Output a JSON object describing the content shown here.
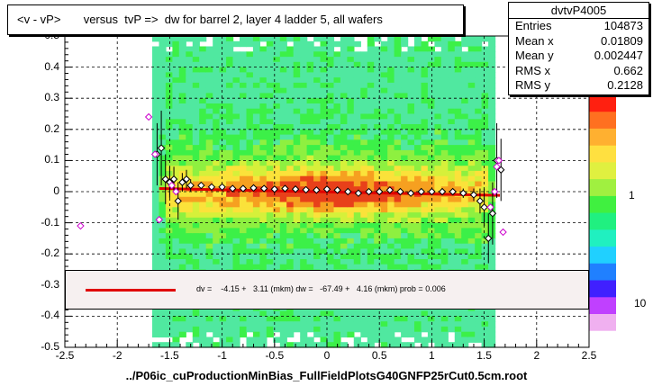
{
  "chart_data": {
    "type": "scatter",
    "title": "<v - vP>       versus  tvP =>  dw for barrel 2, layer 4 ladder 5, all wafers",
    "xlabel": "../P06ic_cuProductionMinBias_FullFieldPlotsG40GNFP25rCut0.5cm.root",
    "xlim": [
      -2.5,
      2.5
    ],
    "ylim": [
      -0.5,
      0.5
    ],
    "x_ticks": [
      "-2.5",
      "-2",
      "-1.5",
      "-1",
      "-0.5",
      "0",
      "0.5",
      "1",
      "1.5",
      "2",
      "2.5"
    ],
    "y_ticks": [
      "-0.5",
      "-0.4",
      "-0.3",
      "-0.2",
      "-0.1",
      "0",
      "0.1",
      "0.2",
      "0.3",
      "0.4",
      "0.5"
    ],
    "z_ticks": [
      "10",
      "1",
      "10"
    ],
    "grid": true,
    "profile_points": [
      {
        "x": -1.62,
        "y": 0.12,
        "err": 0.1
      },
      {
        "x": -1.58,
        "y": 0.14,
        "err": 0.12
      },
      {
        "x": -1.54,
        "y": 0.04,
        "err": 0.08
      },
      {
        "x": -1.5,
        "y": 0.03,
        "err": 0.05
      },
      {
        "x": -1.46,
        "y": 0.04,
        "err": 0.04
      },
      {
        "x": -1.42,
        "y": -0.03,
        "err": 0.06
      },
      {
        "x": -1.38,
        "y": 0.03,
        "err": 0.03
      },
      {
        "x": -1.34,
        "y": 0.04,
        "err": 0.03
      },
      {
        "x": -1.3,
        "y": 0.02,
        "err": 0.02
      },
      {
        "x": -1.2,
        "y": 0.02,
        "err": 0.01
      },
      {
        "x": -1.1,
        "y": 0.015,
        "err": 0.01
      },
      {
        "x": -1.0,
        "y": 0.015,
        "err": 0.01
      },
      {
        "x": -0.9,
        "y": 0.01,
        "err": 0.008
      },
      {
        "x": -0.8,
        "y": 0.01,
        "err": 0.008
      },
      {
        "x": -0.7,
        "y": 0.012,
        "err": 0.008
      },
      {
        "x": -0.6,
        "y": 0.01,
        "err": 0.008
      },
      {
        "x": -0.5,
        "y": 0.008,
        "err": 0.008
      },
      {
        "x": -0.4,
        "y": 0.01,
        "err": 0.008
      },
      {
        "x": -0.3,
        "y": 0.008,
        "err": 0.008
      },
      {
        "x": -0.2,
        "y": 0.006,
        "err": 0.008
      },
      {
        "x": -0.1,
        "y": 0.005,
        "err": 0.008
      },
      {
        "x": 0.0,
        "y": 0.008,
        "err": 0.008
      },
      {
        "x": 0.1,
        "y": 0.005,
        "err": 0.008
      },
      {
        "x": 0.2,
        "y": 0.0,
        "err": 0.008
      },
      {
        "x": 0.3,
        "y": -0.005,
        "err": 0.008
      },
      {
        "x": 0.4,
        "y": 0.0,
        "err": 0.008
      },
      {
        "x": 0.5,
        "y": 0.0,
        "err": 0.008
      },
      {
        "x": 0.6,
        "y": 0.005,
        "err": 0.008
      },
      {
        "x": 0.7,
        "y": 0.0,
        "err": 0.008
      },
      {
        "x": 0.8,
        "y": -0.005,
        "err": 0.008
      },
      {
        "x": 0.9,
        "y": 0.0,
        "err": 0.008
      },
      {
        "x": 1.0,
        "y": 0.0,
        "err": 0.01
      },
      {
        "x": 1.1,
        "y": 0.0,
        "err": 0.01
      },
      {
        "x": 1.2,
        "y": 0.0,
        "err": 0.01
      },
      {
        "x": 1.3,
        "y": -0.005,
        "err": 0.015
      },
      {
        "x": 1.4,
        "y": -0.01,
        "err": 0.02
      },
      {
        "x": 1.46,
        "y": -0.03,
        "err": 0.04
      },
      {
        "x": 1.5,
        "y": -0.05,
        "err": 0.06
      },
      {
        "x": 1.54,
        "y": -0.15,
        "err": 0.08
      },
      {
        "x": 1.58,
        "y": -0.07,
        "err": 0.1
      },
      {
        "x": 1.62,
        "y": 0.1,
        "err": 0.12
      },
      {
        "x": 1.66,
        "y": 0.07,
        "err": 0.1
      }
    ],
    "outlier_points": [
      {
        "x": -2.35,
        "y": -0.11
      },
      {
        "x": -1.7,
        "y": 0.24
      },
      {
        "x": -1.64,
        "y": 0.12
      },
      {
        "x": -1.6,
        "y": -0.09
      },
      {
        "x": -1.48,
        "y": 0.02
      },
      {
        "x": -1.44,
        "y": 0.0
      },
      {
        "x": 1.56,
        "y": -0.05
      },
      {
        "x": 1.6,
        "y": 0.0
      },
      {
        "x": 1.62,
        "y": 0.08
      },
      {
        "x": 1.64,
        "y": 0.1
      },
      {
        "x": 1.68,
        "y": -0.13
      }
    ],
    "fit_line": {
      "x": [
        -1.6,
        1.65
      ],
      "y": [
        0.01,
        -0.012
      ]
    }
  },
  "stats": {
    "title": "dvtvP4005",
    "rows": [
      {
        "label": "Entries",
        "value": "104873"
      },
      {
        "label": "Mean x",
        "value": "0.01809"
      },
      {
        "label": "Mean y",
        "value": "0.002447"
      },
      {
        "label": "RMS x",
        "value": "0.662"
      },
      {
        "label": "RMS y",
        "value": "0.2128"
      }
    ]
  },
  "fit_text": "dv =    -4.15 +   3.11 (mkm) dw =   -67.49 +   4.16 (mkm) prob = 0.006",
  "colors": {
    "fit": "#e00000",
    "profile_marker": "#000000",
    "outlier_marker": "#cc00cc"
  }
}
